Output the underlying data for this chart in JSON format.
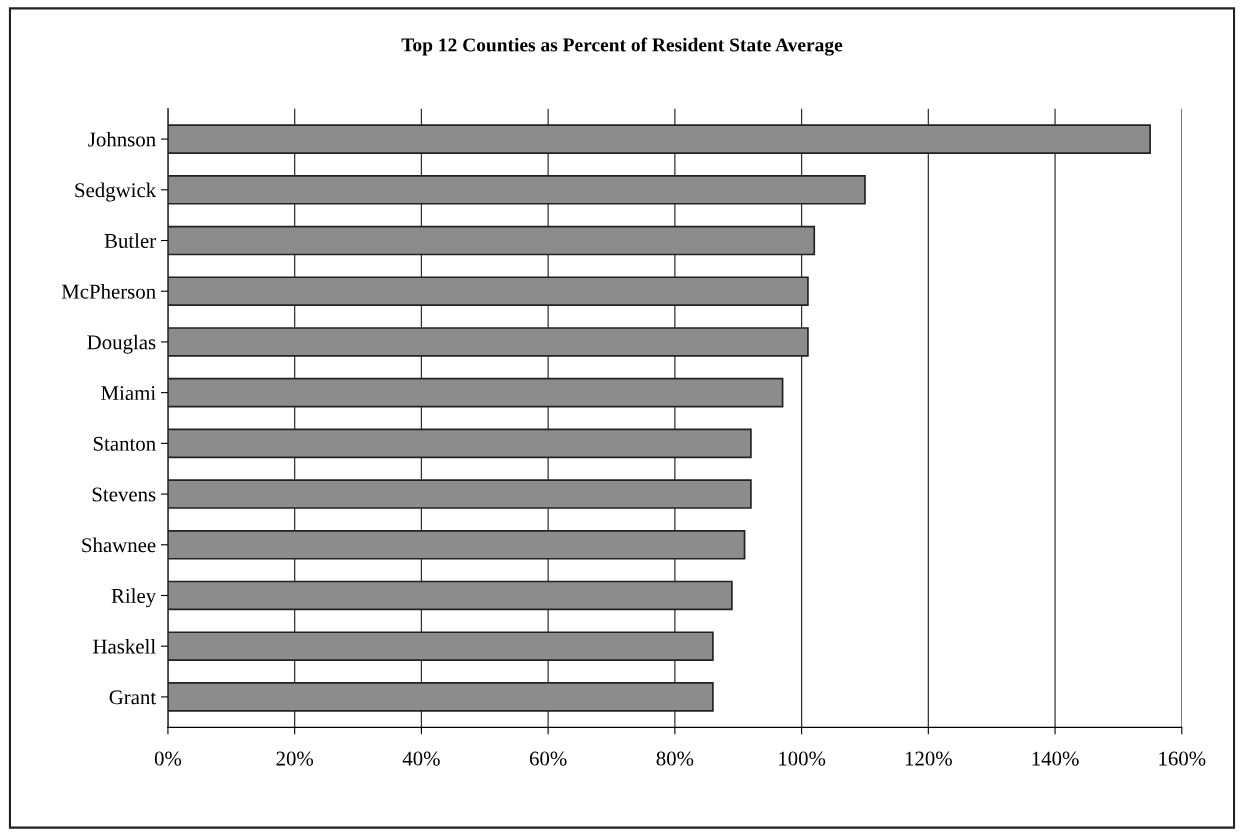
{
  "chart_data": {
    "type": "bar",
    "orientation": "horizontal",
    "title": "Top 12 Counties as Percent of Resident State Average",
    "categories": [
      "Johnson",
      "Sedgwick",
      "Butler",
      "McPherson",
      "Douglas",
      "Miami",
      "Stanton",
      "Stevens",
      "Shawnee",
      "Riley",
      "Haskell",
      "Grant"
    ],
    "values": [
      155,
      110,
      102,
      101,
      101,
      97,
      92,
      92,
      91,
      89,
      86,
      86
    ],
    "color": "#8c8c8c",
    "xlim": [
      0,
      160
    ],
    "xticks": [
      {
        "value": 0,
        "label": "0%"
      },
      {
        "value": 20,
        "label": "20%"
      },
      {
        "value": 40,
        "label": "40%"
      },
      {
        "value": 60,
        "label": "60%"
      },
      {
        "value": 80,
        "label": "80%"
      },
      {
        "value": 100,
        "label": "100%"
      },
      {
        "value": 120,
        "label": "120%"
      },
      {
        "value": 140,
        "label": "140%"
      },
      {
        "value": 160,
        "label": "160%"
      }
    ],
    "grid": "x",
    "legend": false
  }
}
